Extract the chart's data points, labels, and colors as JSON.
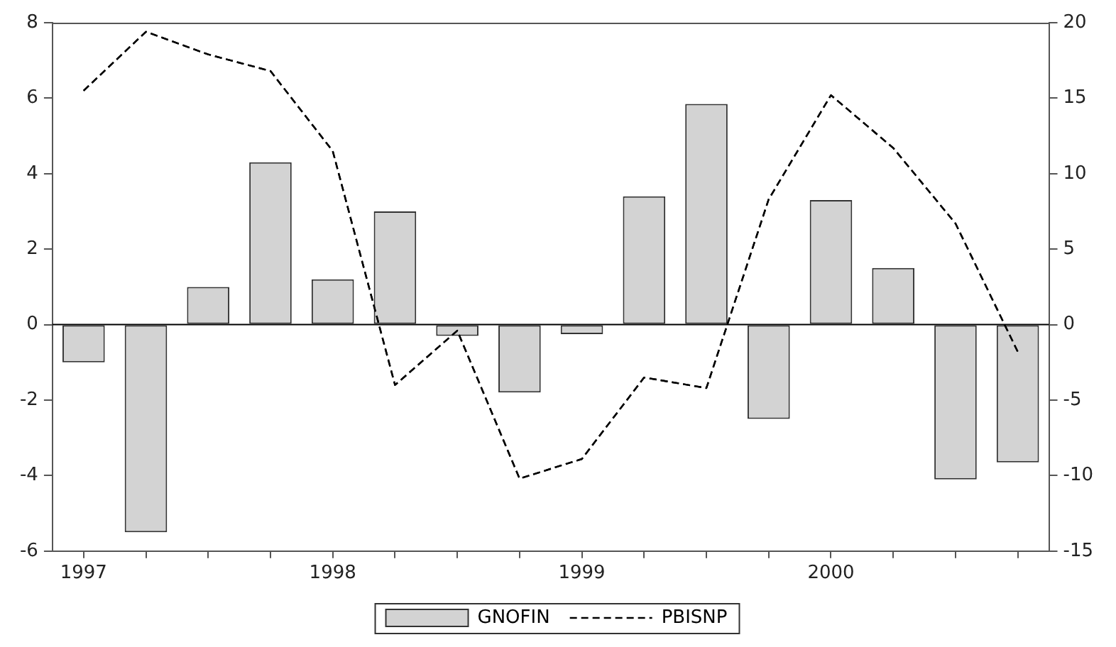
{
  "chart_data": {
    "type": "bar",
    "categories": [
      "1997",
      null,
      null,
      null,
      "1998",
      null,
      null,
      null,
      "1999",
      null,
      null,
      null,
      "2000",
      null,
      null,
      null
    ],
    "series": [
      {
        "name": "GNOFIN",
        "color": "#d3d3d3",
        "values": [
          -1.0,
          -5.5,
          1.0,
          4.3,
          1.2,
          3.0,
          -0.3,
          -1.8,
          -0.25,
          3.4,
          5.85,
          -2.5,
          3.3,
          1.5,
          -4.1,
          -3.65
        ]
      },
      {
        "name": "PBISNP",
        "type": "line",
        "axis": "y2",
        "color": "#000000",
        "line_style": "dashed",
        "marker": "none",
        "values": [
          15.5,
          19.4,
          17.9,
          16.8,
          11.5,
          -4.0,
          -0.4,
          -10.2,
          -8.9,
          -3.5,
          -4.2,
          8.3,
          15.2,
          11.7,
          6.7,
          -1.8
        ]
      }
    ],
    "ylim": [
      -6,
      8
    ],
    "yticks": [
      -6,
      -4,
      -2,
      0,
      2,
      4,
      6,
      8
    ],
    "y2lim": [
      -15,
      20
    ],
    "y2ticks": [
      -15,
      -10,
      -5,
      0,
      5,
      10,
      15,
      20
    ],
    "ref_lines": [
      {
        "axis": "y",
        "value": 0,
        "color": "#000000"
      }
    ],
    "grid": false,
    "legend": "bottom"
  }
}
